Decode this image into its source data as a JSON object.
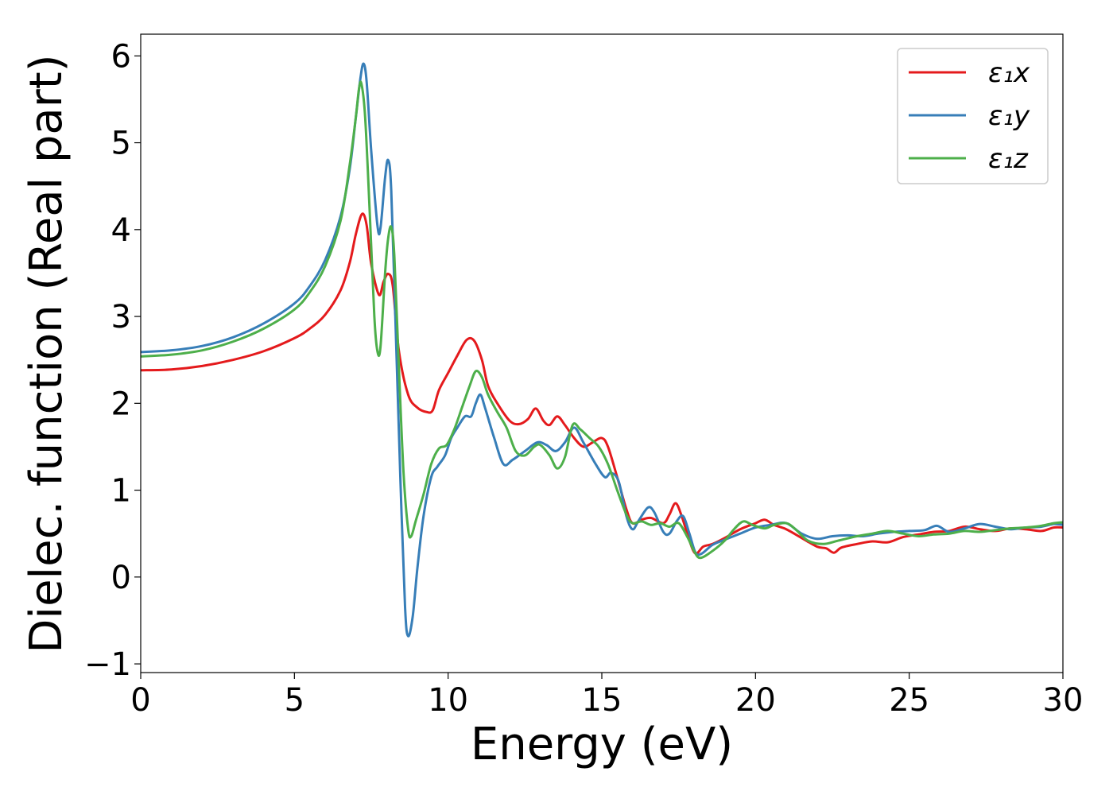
{
  "chart_data": {
    "type": "line",
    "title": "",
    "xlabel": "Energy (eV)",
    "ylabel": "Dielec. function (Real part)",
    "xlim": [
      0,
      30
    ],
    "ylim": [
      -1.1,
      6.25
    ],
    "xticks": [
      0,
      5,
      10,
      15,
      20,
      25,
      30
    ],
    "xtick_labels": [
      "0",
      "5",
      "10",
      "15",
      "20",
      "25",
      "30"
    ],
    "yticks": [
      -1,
      0,
      1,
      2,
      3,
      4,
      5,
      6
    ],
    "ytick_labels": [
      "−1",
      "0",
      "1",
      "2",
      "3",
      "4",
      "5",
      "6"
    ],
    "grid": false,
    "legend_position": "top-right",
    "series": [
      {
        "name": "ε₁x",
        "color": "#e41a1c",
        "points": [
          [
            0,
            2.38
          ],
          [
            1,
            2.39
          ],
          [
            2,
            2.43
          ],
          [
            3,
            2.5
          ],
          [
            4,
            2.6
          ],
          [
            5,
            2.75
          ],
          [
            5.5,
            2.86
          ],
          [
            6,
            3.02
          ],
          [
            6.5,
            3.3
          ],
          [
            6.8,
            3.62
          ],
          [
            7,
            3.95
          ],
          [
            7.2,
            4.18
          ],
          [
            7.35,
            4.05
          ],
          [
            7.5,
            3.6
          ],
          [
            7.75,
            3.25
          ],
          [
            7.9,
            3.4
          ],
          [
            8.05,
            3.49
          ],
          [
            8.2,
            3.35
          ],
          [
            8.4,
            2.6
          ],
          [
            8.7,
            2.1
          ],
          [
            9,
            1.95
          ],
          [
            9.3,
            1.9
          ],
          [
            9.5,
            1.92
          ],
          [
            9.7,
            2.15
          ],
          [
            10,
            2.35
          ],
          [
            10.3,
            2.55
          ],
          [
            10.6,
            2.73
          ],
          [
            10.85,
            2.72
          ],
          [
            11.1,
            2.5
          ],
          [
            11.3,
            2.2
          ],
          [
            11.6,
            2.0
          ],
          [
            12,
            1.8
          ],
          [
            12.3,
            1.76
          ],
          [
            12.6,
            1.82
          ],
          [
            12.85,
            1.94
          ],
          [
            13.1,
            1.8
          ],
          [
            13.3,
            1.75
          ],
          [
            13.55,
            1.85
          ],
          [
            13.8,
            1.75
          ],
          [
            14.1,
            1.6
          ],
          [
            14.4,
            1.5
          ],
          [
            14.7,
            1.55
          ],
          [
            15,
            1.6
          ],
          [
            15.2,
            1.5
          ],
          [
            15.5,
            1.15
          ],
          [
            15.8,
            0.78
          ],
          [
            16,
            0.62
          ],
          [
            16.3,
            0.66
          ],
          [
            16.6,
            0.68
          ],
          [
            17,
            0.62
          ],
          [
            17.2,
            0.72
          ],
          [
            17.4,
            0.85
          ],
          [
            17.6,
            0.7
          ],
          [
            17.85,
            0.42
          ],
          [
            18.05,
            0.27
          ],
          [
            18.3,
            0.35
          ],
          [
            18.6,
            0.38
          ],
          [
            19,
            0.45
          ],
          [
            19.5,
            0.55
          ],
          [
            20,
            0.62
          ],
          [
            20.3,
            0.66
          ],
          [
            20.6,
            0.6
          ],
          [
            21,
            0.55
          ],
          [
            21.5,
            0.45
          ],
          [
            22,
            0.35
          ],
          [
            22.3,
            0.33
          ],
          [
            22.55,
            0.28
          ],
          [
            22.8,
            0.34
          ],
          [
            23.3,
            0.38
          ],
          [
            23.8,
            0.41
          ],
          [
            24.3,
            0.4
          ],
          [
            24.8,
            0.46
          ],
          [
            25.3,
            0.49
          ],
          [
            25.8,
            0.52
          ],
          [
            26.3,
            0.53
          ],
          [
            26.8,
            0.58
          ],
          [
            27.3,
            0.55
          ],
          [
            27.8,
            0.53
          ],
          [
            28.3,
            0.56
          ],
          [
            28.8,
            0.55
          ],
          [
            29.3,
            0.53
          ],
          [
            29.7,
            0.57
          ],
          [
            30,
            0.57
          ]
        ]
      },
      {
        "name": "ε₁y",
        "color": "#377eb8",
        "points": [
          [
            0,
            2.59
          ],
          [
            1,
            2.61
          ],
          [
            2,
            2.66
          ],
          [
            3,
            2.76
          ],
          [
            4,
            2.92
          ],
          [
            5,
            3.15
          ],
          [
            5.5,
            3.35
          ],
          [
            6,
            3.65
          ],
          [
            6.5,
            4.15
          ],
          [
            6.8,
            4.7
          ],
          [
            7,
            5.3
          ],
          [
            7.15,
            5.75
          ],
          [
            7.25,
            5.91
          ],
          [
            7.35,
            5.7
          ],
          [
            7.5,
            4.9
          ],
          [
            7.7,
            4.05
          ],
          [
            7.8,
            4.02
          ],
          [
            7.95,
            4.6
          ],
          [
            8.05,
            4.8
          ],
          [
            8.15,
            4.45
          ],
          [
            8.3,
            2.8
          ],
          [
            8.45,
            1.1
          ],
          [
            8.6,
            -0.35
          ],
          [
            8.7,
            -0.68
          ],
          [
            8.85,
            -0.45
          ],
          [
            9,
            0.1
          ],
          [
            9.2,
            0.7
          ],
          [
            9.45,
            1.15
          ],
          [
            9.65,
            1.27
          ],
          [
            9.9,
            1.4
          ],
          [
            10.1,
            1.6
          ],
          [
            10.3,
            1.72
          ],
          [
            10.55,
            1.85
          ],
          [
            10.75,
            1.85
          ],
          [
            10.9,
            2.0
          ],
          [
            11.05,
            2.1
          ],
          [
            11.2,
            1.95
          ],
          [
            11.5,
            1.6
          ],
          [
            11.8,
            1.3
          ],
          [
            12.1,
            1.35
          ],
          [
            12.5,
            1.45
          ],
          [
            12.9,
            1.55
          ],
          [
            13.2,
            1.52
          ],
          [
            13.5,
            1.45
          ],
          [
            13.8,
            1.55
          ],
          [
            14.1,
            1.72
          ],
          [
            14.4,
            1.55
          ],
          [
            14.8,
            1.3
          ],
          [
            15.1,
            1.15
          ],
          [
            15.3,
            1.2
          ],
          [
            15.55,
            1.1
          ],
          [
            15.8,
            0.7
          ],
          [
            16,
            0.55
          ],
          [
            16.2,
            0.65
          ],
          [
            16.5,
            0.8
          ],
          [
            16.7,
            0.75
          ],
          [
            17,
            0.52
          ],
          [
            17.2,
            0.5
          ],
          [
            17.45,
            0.65
          ],
          [
            17.65,
            0.7
          ],
          [
            17.85,
            0.5
          ],
          [
            18.05,
            0.28
          ],
          [
            18.25,
            0.27
          ],
          [
            18.6,
            0.37
          ],
          [
            19,
            0.43
          ],
          [
            19.5,
            0.5
          ],
          [
            20,
            0.57
          ],
          [
            20.5,
            0.6
          ],
          [
            21,
            0.62
          ],
          [
            21.5,
            0.5
          ],
          [
            22,
            0.44
          ],
          [
            22.5,
            0.47
          ],
          [
            23,
            0.48
          ],
          [
            23.5,
            0.47
          ],
          [
            24,
            0.5
          ],
          [
            24.5,
            0.52
          ],
          [
            25,
            0.53
          ],
          [
            25.5,
            0.54
          ],
          [
            25.9,
            0.59
          ],
          [
            26.3,
            0.52
          ],
          [
            26.8,
            0.56
          ],
          [
            27.3,
            0.61
          ],
          [
            27.8,
            0.58
          ],
          [
            28.3,
            0.55
          ],
          [
            28.8,
            0.57
          ],
          [
            29.3,
            0.58
          ],
          [
            29.7,
            0.61
          ],
          [
            30,
            0.6
          ]
        ]
      },
      {
        "name": "ε₁z",
        "color": "#4daf4a",
        "points": [
          [
            0,
            2.54
          ],
          [
            1,
            2.56
          ],
          [
            2,
            2.61
          ],
          [
            3,
            2.71
          ],
          [
            4,
            2.86
          ],
          [
            5,
            3.08
          ],
          [
            5.5,
            3.28
          ],
          [
            6,
            3.58
          ],
          [
            6.5,
            4.1
          ],
          [
            6.8,
            4.75
          ],
          [
            7,
            5.3
          ],
          [
            7.1,
            5.62
          ],
          [
            7.18,
            5.68
          ],
          [
            7.3,
            5.3
          ],
          [
            7.45,
            4.2
          ],
          [
            7.6,
            3.0
          ],
          [
            7.7,
            2.6
          ],
          [
            7.8,
            2.65
          ],
          [
            7.95,
            3.5
          ],
          [
            8.05,
            3.9
          ],
          [
            8.15,
            4.03
          ],
          [
            8.25,
            3.7
          ],
          [
            8.4,
            2.4
          ],
          [
            8.55,
            1.2
          ],
          [
            8.7,
            0.55
          ],
          [
            8.8,
            0.47
          ],
          [
            8.95,
            0.65
          ],
          [
            9.2,
            0.95
          ],
          [
            9.45,
            1.3
          ],
          [
            9.7,
            1.48
          ],
          [
            9.95,
            1.52
          ],
          [
            10.2,
            1.7
          ],
          [
            10.45,
            1.95
          ],
          [
            10.7,
            2.2
          ],
          [
            10.9,
            2.37
          ],
          [
            11.1,
            2.3
          ],
          [
            11.3,
            2.1
          ],
          [
            11.6,
            1.9
          ],
          [
            11.9,
            1.72
          ],
          [
            12.2,
            1.45
          ],
          [
            12.5,
            1.4
          ],
          [
            12.8,
            1.5
          ],
          [
            13,
            1.52
          ],
          [
            13.3,
            1.4
          ],
          [
            13.55,
            1.25
          ],
          [
            13.8,
            1.38
          ],
          [
            14.05,
            1.75
          ],
          [
            14.3,
            1.7
          ],
          [
            14.6,
            1.6
          ],
          [
            14.9,
            1.5
          ],
          [
            15.2,
            1.3
          ],
          [
            15.5,
            1.0
          ],
          [
            15.8,
            0.72
          ],
          [
            16,
            0.62
          ],
          [
            16.3,
            0.64
          ],
          [
            16.6,
            0.6
          ],
          [
            16.9,
            0.62
          ],
          [
            17.2,
            0.58
          ],
          [
            17.5,
            0.62
          ],
          [
            17.8,
            0.45
          ],
          [
            18,
            0.3
          ],
          [
            18.2,
            0.22
          ],
          [
            18.6,
            0.3
          ],
          [
            19,
            0.42
          ],
          [
            19.3,
            0.55
          ],
          [
            19.6,
            0.64
          ],
          [
            19.9,
            0.6
          ],
          [
            20.3,
            0.56
          ],
          [
            20.6,
            0.6
          ],
          [
            21,
            0.62
          ],
          [
            21.3,
            0.55
          ],
          [
            21.7,
            0.42
          ],
          [
            22.2,
            0.38
          ],
          [
            22.7,
            0.42
          ],
          [
            23.3,
            0.47
          ],
          [
            23.8,
            0.5
          ],
          [
            24.3,
            0.53
          ],
          [
            24.8,
            0.5
          ],
          [
            25.3,
            0.47
          ],
          [
            25.8,
            0.49
          ],
          [
            26.3,
            0.5
          ],
          [
            26.8,
            0.53
          ],
          [
            27.3,
            0.52
          ],
          [
            27.8,
            0.54
          ],
          [
            28.3,
            0.56
          ],
          [
            28.8,
            0.57
          ],
          [
            29.3,
            0.59
          ],
          [
            29.7,
            0.62
          ],
          [
            30,
            0.63
          ]
        ]
      }
    ]
  }
}
